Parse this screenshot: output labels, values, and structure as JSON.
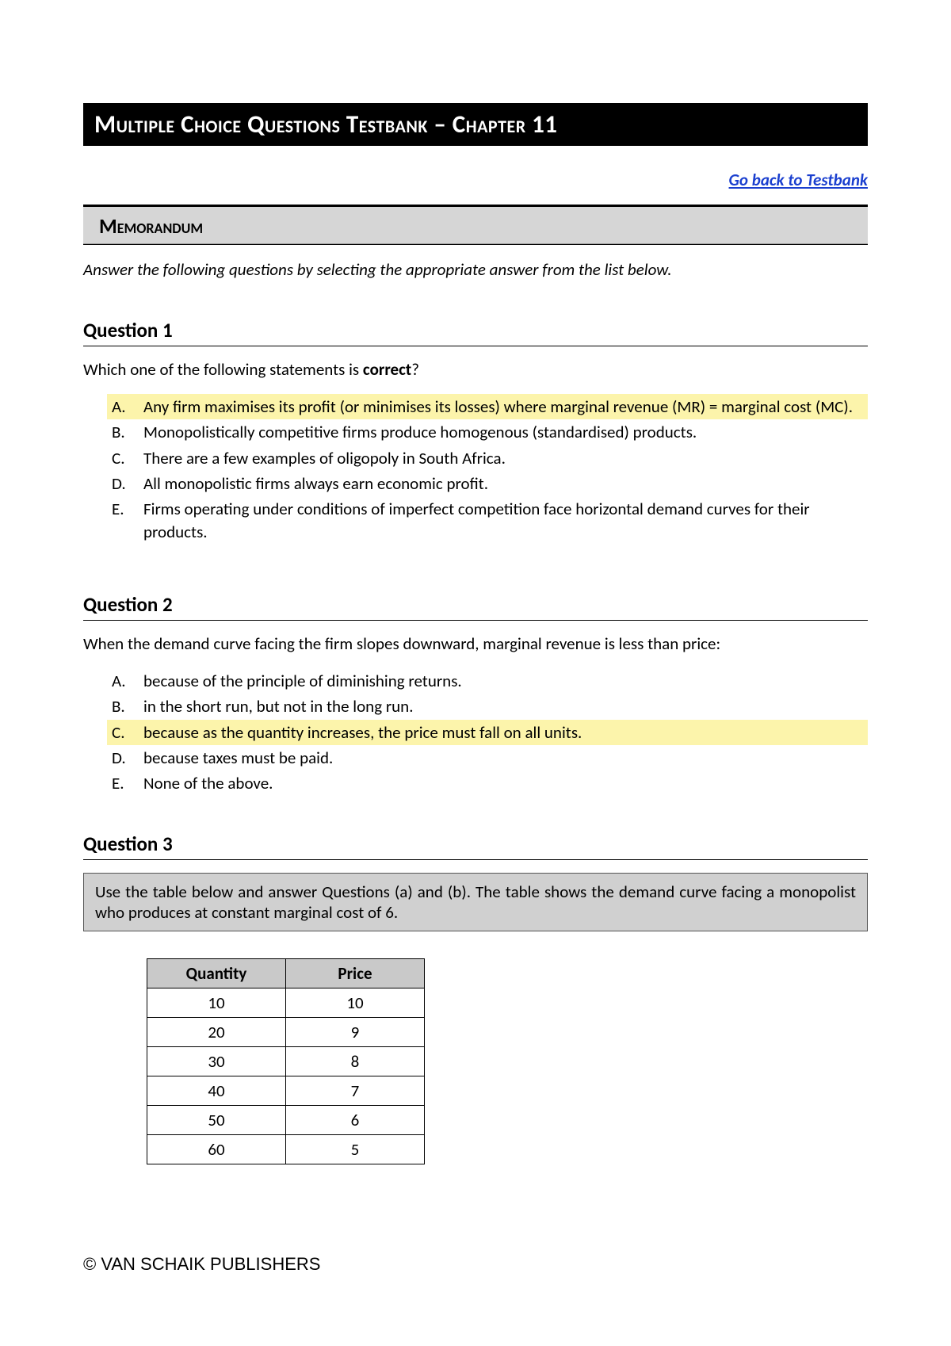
{
  "title": "Multiple Choice Questions Testbank – Chapter 11",
  "back_link": "Go back to Testbank",
  "memo_heading": "Memorandum",
  "instruction": "Answer the following questions by selecting the appropriate answer from the list below.",
  "q1": {
    "title": "Question 1",
    "prompt_prefix": "Which one of the following statements is ",
    "prompt_bold": "correct",
    "prompt_suffix": "?",
    "options": [
      {
        "letter": "A.",
        "text": "Any firm maximises its profit (or minimises its losses) where marginal revenue (MR) = marginal cost (MC).",
        "highlight": true
      },
      {
        "letter": "B.",
        "text": "Monopolistically competitive firms produce homogenous (standardised) products.",
        "highlight": false
      },
      {
        "letter": "C.",
        "text": "There are a few examples of oligopoly in South Africa.",
        "highlight": false
      },
      {
        "letter": "D.",
        "text": "All monopolistic firms always earn economic profit.",
        "highlight": false
      },
      {
        "letter": "E.",
        "text": "Firms operating under conditions of imperfect competition face horizontal demand curves for their products.",
        "highlight": false
      }
    ]
  },
  "q2": {
    "title": "Question 2",
    "prompt": "When the demand curve facing the firm slopes downward, marginal revenue is less than price:",
    "options": [
      {
        "letter": "A.",
        "text": "because of the principle of diminishing returns.",
        "highlight": false
      },
      {
        "letter": "B.",
        "text": "in the short run, but not in the long run.",
        "highlight": false
      },
      {
        "letter": "C.",
        "text": "because as the quantity increases, the price must fall on all units.",
        "highlight": true
      },
      {
        "letter": "D.",
        "text": "because taxes must be paid.",
        "highlight": false
      },
      {
        "letter": "E.",
        "text": "None of the above.",
        "highlight": false
      }
    ]
  },
  "q3": {
    "title": "Question 3",
    "box_text": "Use the table below and answer Questions (a) and (b). The table shows the demand curve facing a monopolist who produces at constant marginal cost of 6.",
    "table": {
      "headers": [
        "Quantity",
        "Price"
      ],
      "rows": [
        [
          "10",
          "10"
        ],
        [
          "20",
          "9"
        ],
        [
          "30",
          "8"
        ],
        [
          "40",
          "7"
        ],
        [
          "50",
          "6"
        ],
        [
          "60",
          "5"
        ]
      ]
    }
  },
  "footer": "© VAN SCHAIK PUBLISHERS",
  "colors": {
    "highlight": "#fcf4ab",
    "header_bg": "#d6d6d6",
    "table_header_bg": "#c9c9c9",
    "link": "#1a3fcf"
  }
}
